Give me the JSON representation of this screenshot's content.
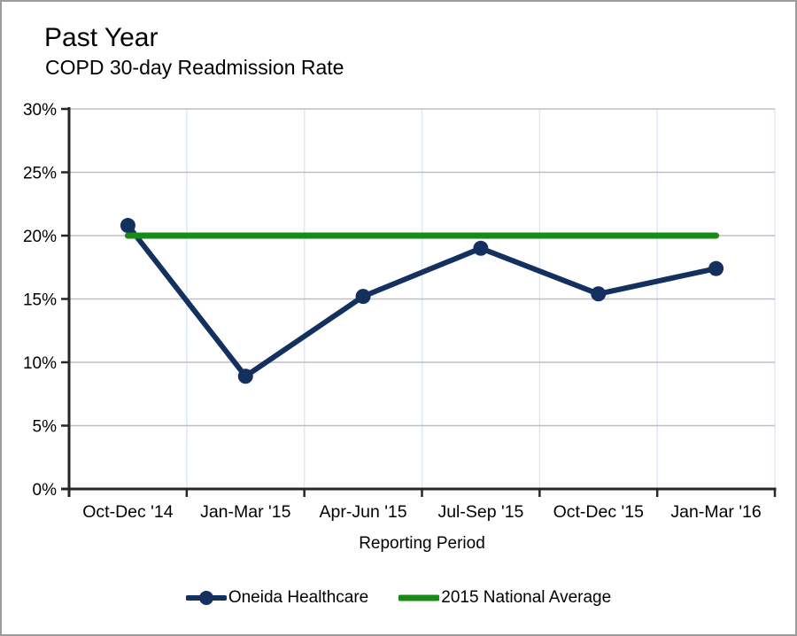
{
  "header": {
    "title": "Past Year",
    "subtitle": "COPD 30-day Readmission Rate"
  },
  "chart_data": {
    "type": "line",
    "categories": [
      "Oct-Dec '14",
      "Jan-Mar '15",
      "Apr-Jun '15",
      "Jul-Sep '15",
      "Oct-Dec '15",
      "Jan-Mar '16"
    ],
    "series": [
      {
        "name": "Oneida Healthcare",
        "values": [
          20.8,
          8.9,
          15.2,
          19.0,
          15.4,
          17.4
        ],
        "color": "#14305E",
        "marker": "circle",
        "line_width": 6
      },
      {
        "name": "2015 National Average",
        "values": [
          20,
          20,
          20,
          20,
          20,
          20
        ],
        "color": "#168C16",
        "marker": "none",
        "line_width": 7
      }
    ],
    "title": "Past Year",
    "subtitle": "COPD 30-day Readmission Rate",
    "xlabel": "Reporting Period",
    "ylabel": "",
    "ylim": [
      0,
      30
    ],
    "ytick_step": 5,
    "ytick_labels": [
      "0%",
      "5%",
      "10%",
      "15%",
      "20%",
      "25%",
      "30%"
    ],
    "grid": {
      "horizontal_color": "#BFBFBF",
      "vertical_color": "#DEE9F7"
    },
    "axis_color": "#262626",
    "legend_position": "bottom"
  }
}
